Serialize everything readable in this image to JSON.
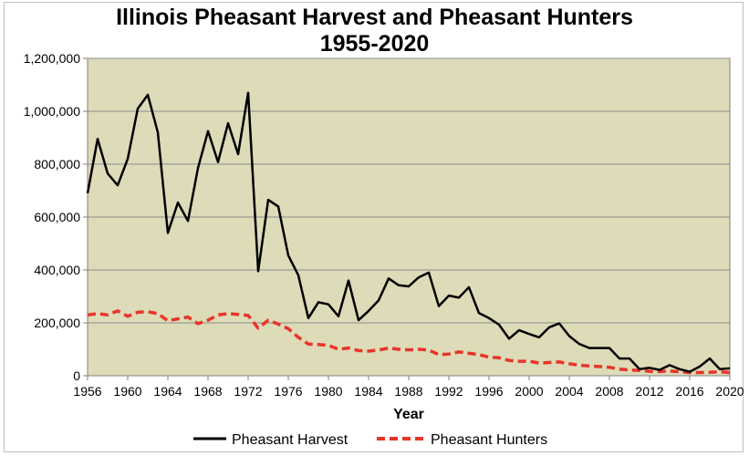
{
  "chart_data": {
    "type": "line",
    "title": "Illinois Pheasant Harvest and Pheasant Hunters",
    "subtitle": "1955-2020",
    "xlabel": "Year",
    "ylabel": "",
    "xlim": [
      1956,
      2020
    ],
    "ylim": [
      0,
      1200000
    ],
    "yticks": [
      0,
      200000,
      400000,
      600000,
      800000,
      1000000,
      1200000
    ],
    "ytick_labels": [
      "0",
      "200,000",
      "400,000",
      "600,000",
      "800,000",
      "1,000,000",
      "1,200,000"
    ],
    "xticks": [
      1956,
      1960,
      1964,
      1968,
      1972,
      1976,
      1980,
      1984,
      1988,
      1992,
      1996,
      2000,
      2004,
      2008,
      2012,
      2016,
      2020
    ],
    "xtick_labels": [
      "1956",
      "1960",
      "1964",
      "1968",
      "1972",
      "1976",
      "1980",
      "1984",
      "1988",
      "1992",
      "1996",
      "2000",
      "2004",
      "2008",
      "2012",
      "2016",
      "2020"
    ],
    "grid": true,
    "legend_position": "bottom",
    "plot_background": "#dddbb8",
    "x": [
      1956,
      1957,
      1958,
      1959,
      1960,
      1961,
      1962,
      1963,
      1964,
      1965,
      1966,
      1967,
      1968,
      1969,
      1970,
      1971,
      1972,
      1973,
      1974,
      1975,
      1976,
      1977,
      1978,
      1979,
      1980,
      1981,
      1982,
      1983,
      1984,
      1985,
      1986,
      1987,
      1988,
      1989,
      1990,
      1991,
      1992,
      1993,
      1994,
      1995,
      1996,
      1997,
      1998,
      1999,
      2000,
      2001,
      2002,
      2003,
      2004,
      2005,
      2006,
      2007,
      2008,
      2009,
      2010,
      2011,
      2012,
      2013,
      2014,
      2015,
      2016,
      2017,
      2018,
      2019,
      2020
    ],
    "series": [
      {
        "name": "Pheasant Harvest",
        "color": "#000000",
        "dash": "solid",
        "values": [
          690000,
          895000,
          765000,
          720000,
          820000,
          1010000,
          1062000,
          920000,
          540000,
          655000,
          585000,
          785000,
          925000,
          808000,
          955000,
          838000,
          1070000,
          395000,
          665000,
          640000,
          455000,
          380000,
          218000,
          278000,
          270000,
          225000,
          360000,
          210000,
          245000,
          285000,
          368000,
          342000,
          338000,
          372000,
          390000,
          263000,
          303000,
          295000,
          335000,
          237000,
          218000,
          193000,
          140000,
          172000,
          158000,
          145000,
          183000,
          198000,
          150000,
          120000,
          105000,
          105000,
          105000,
          65000,
          65000,
          25000,
          30000,
          22000,
          40000,
          25000,
          15000,
          35000,
          65000,
          25000,
          28000
        ]
      },
      {
        "name": "Pheasant Hunters",
        "color": "#e8352a",
        "dash": "dashed",
        "values": [
          230000,
          235000,
          230000,
          245000,
          225000,
          240000,
          242000,
          235000,
          208000,
          215000,
          222000,
          197000,
          210000,
          230000,
          235000,
          232000,
          228000,
          180000,
          210000,
          195000,
          178000,
          145000,
          120000,
          118000,
          115000,
          100000,
          105000,
          95000,
          93000,
          97000,
          105000,
          100000,
          98000,
          100000,
          97000,
          80000,
          82000,
          90000,
          85000,
          80000,
          70000,
          68000,
          58000,
          55000,
          55000,
          48000,
          50000,
          52000,
          45000,
          40000,
          37000,
          35000,
          32000,
          25000,
          22000,
          20000,
          17000,
          16000,
          18000,
          15000,
          12000,
          12000,
          13000,
          15000,
          12000
        ]
      }
    ]
  }
}
